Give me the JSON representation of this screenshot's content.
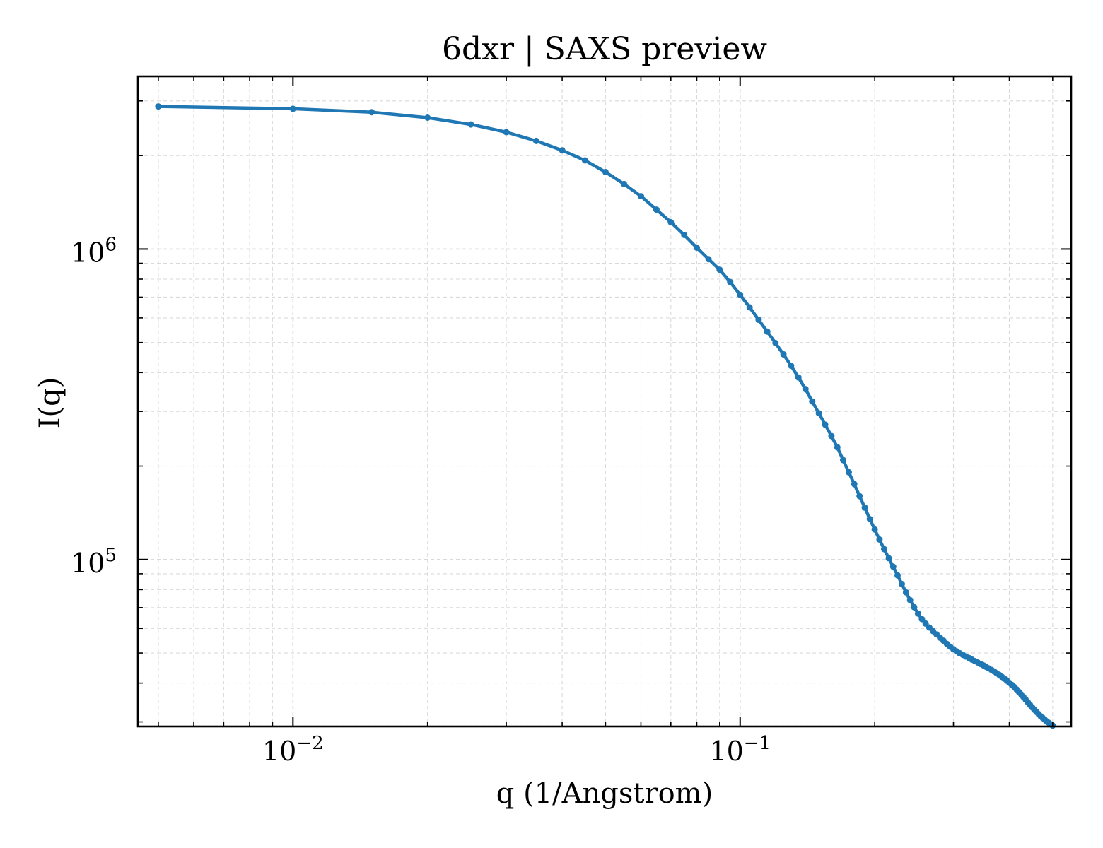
{
  "chart_data": {
    "type": "line",
    "title": "6dxr | SAXS preview",
    "xlabel": "q (1/Angstrom)",
    "ylabel": "I(q)",
    "xscale": "log",
    "yscale": "log",
    "xlim": [
      0.0045,
      0.55
    ],
    "ylim": [
      29000,
      3600000
    ],
    "grid": true,
    "legend": "none",
    "x_ticks": [
      {
        "base": "10",
        "exp": "−2",
        "value": 0.01
      },
      {
        "base": "10",
        "exp": "−1",
        "value": 0.1
      }
    ],
    "y_ticks": [
      {
        "base": "10",
        "exp": "5",
        "value": 100000
      },
      {
        "base": "10",
        "exp": "6",
        "value": 1000000
      }
    ],
    "colors": {
      "line": "#1f77b4",
      "grid": "#d9d9d9",
      "axes": "#000000"
    },
    "series": [
      {
        "x": [
          0.005,
          0.01,
          0.015,
          0.02,
          0.025,
          0.03,
          0.035,
          0.04,
          0.045,
          0.05,
          0.055,
          0.06,
          0.065,
          0.07,
          0.075,
          0.08,
          0.085,
          0.09,
          0.095,
          0.1,
          0.105,
          0.11,
          0.115,
          0.12,
          0.125,
          0.13,
          0.135,
          0.14,
          0.145,
          0.15,
          0.155,
          0.16,
          0.165,
          0.17,
          0.175,
          0.18,
          0.185,
          0.19,
          0.195,
          0.2,
          0.205,
          0.21,
          0.215,
          0.22,
          0.225,
          0.23,
          0.235,
          0.24,
          0.245,
          0.25,
          0.255,
          0.26,
          0.265,
          0.27,
          0.275,
          0.28,
          0.285,
          0.29,
          0.295,
          0.3,
          0.305,
          0.31,
          0.315,
          0.32,
          0.325,
          0.33,
          0.335,
          0.34,
          0.345,
          0.35,
          0.355,
          0.36,
          0.365,
          0.37,
          0.375,
          0.38,
          0.385,
          0.39,
          0.395,
          0.4,
          0.405,
          0.41,
          0.415,
          0.42,
          0.425,
          0.43,
          0.435,
          0.44,
          0.445,
          0.45,
          0.455,
          0.46,
          0.465,
          0.47,
          0.475,
          0.48,
          0.485,
          0.49,
          0.495,
          0.5
        ],
        "y": [
          2880000,
          2830000,
          2760000,
          2650000,
          2520000,
          2380000,
          2230000,
          2080000,
          1930000,
          1770000,
          1620000,
          1480000,
          1340000,
          1220000,
          1110000,
          1010000,
          928000,
          858000,
          783000,
          712000,
          649000,
          592000,
          542000,
          498000,
          458000,
          421000,
          386000,
          354000,
          323000,
          296000,
          272000,
          250000,
          230000,
          209000,
          191000,
          175000,
          160000,
          147000,
          135000,
          125000,
          116000,
          108000,
          101000,
          94800,
          88900,
          83400,
          78400,
          74000,
          70200,
          67000,
          64300,
          62200,
          60400,
          58800,
          57400,
          56000,
          54800,
          53500,
          52400,
          51400,
          50600,
          49900,
          49300,
          48700,
          48200,
          47600,
          47100,
          46600,
          46100,
          45600,
          45100,
          44600,
          44100,
          43600,
          43000,
          42500,
          41900,
          41300,
          40700,
          40100,
          39500,
          38900,
          38200,
          37500,
          36800,
          36100,
          35400,
          34700,
          34000,
          33400,
          32800,
          32300,
          31800,
          31300,
          30900,
          30500,
          30100,
          29800,
          29500,
          29200
        ]
      }
    ]
  }
}
